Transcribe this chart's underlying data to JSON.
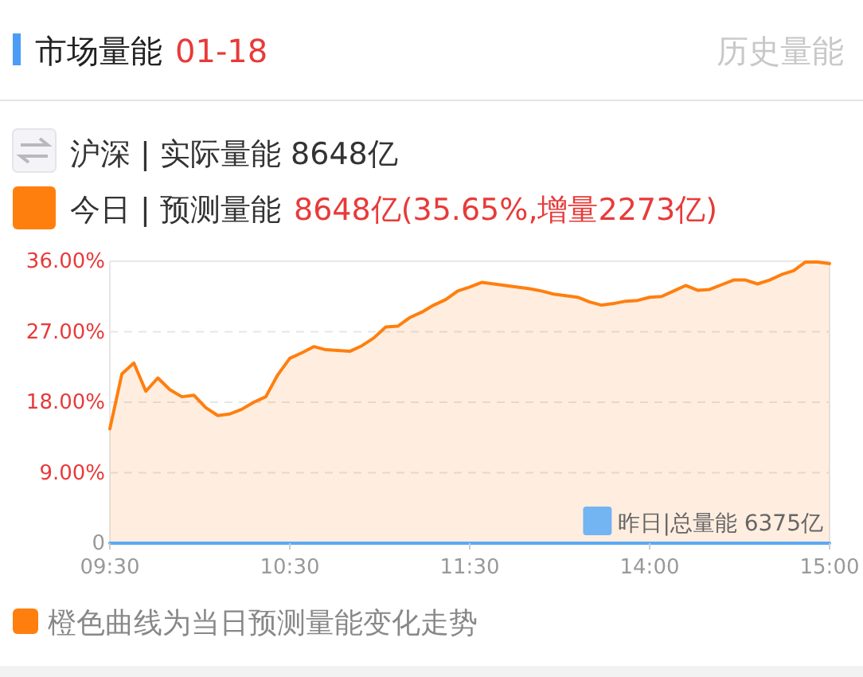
{
  "chart_data": {
    "type": "area",
    "title": "市场量能",
    "subtitle": "01-18",
    "annotations": [
      "历史量能",
      "沪深 | 实际量能 8648亿",
      "8648亿(35.65%,增量2273亿)",
      "橙色曲线为当日预测量能变化走势"
    ],
    "categories": [
      "09:30",
      null,
      null,
      null,
      null,
      null,
      null,
      null,
      null,
      null,
      null,
      null,
      null,
      null,
      null,
      "10:30",
      null,
      null,
      null,
      null,
      null,
      null,
      null,
      null,
      null,
      null,
      null,
      null,
      null,
      null,
      "11:30",
      null,
      null,
      null,
      null,
      null,
      null,
      null,
      null,
      null,
      null,
      null,
      null,
      null,
      null,
      "14:00",
      null,
      null,
      null,
      null,
      null,
      null,
      null,
      null,
      null,
      null,
      null,
      null,
      null,
      null,
      "15:00"
    ],
    "ylim": [
      0,
      36
    ],
    "yticks": [
      {
        "value": 0,
        "label": "0"
      },
      {
        "value": 9,
        "label": "9.00%"
      },
      {
        "value": 18,
        "label": "18.00%"
      },
      {
        "value": 27,
        "label": "27.00%"
      },
      {
        "value": 36,
        "label": "36.00%"
      }
    ],
    "grid": "y",
    "legend": "top left",
    "series": [
      {
        "name": "今日 | 预测量能",
        "color": "#ff7f0e",
        "values": [
          14.6,
          21.6,
          23.0,
          19.4,
          21.1,
          19.6,
          18.7,
          18.9,
          17.3,
          16.3,
          16.5,
          17.1,
          18.0,
          18.7,
          21.5,
          23.6,
          24.3,
          25.1,
          24.7,
          24.6,
          24.5,
          25.2,
          26.2,
          27.6,
          27.7,
          28.8,
          29.5,
          30.4,
          31.1,
          32.2,
          32.7,
          33.3,
          33.1,
          32.9,
          32.7,
          32.5,
          32.2,
          31.8,
          31.6,
          31.4,
          30.8,
          30.4,
          30.6,
          30.9,
          31.0,
          31.4,
          31.5,
          32.2,
          32.9,
          32.3,
          32.4,
          33.0,
          33.6,
          33.6,
          33.1,
          33.6,
          34.3,
          34.8,
          35.9,
          35.9,
          35.7
        ]
      },
      {
        "name": "昨日|总量能 6375亿",
        "type": "line",
        "color": "#5aa9f5",
        "values": [
          0,
          0,
          0,
          0,
          0,
          0,
          0,
          0,
          0,
          0,
          0,
          0,
          0,
          0,
          0,
          0,
          0,
          0,
          0,
          0,
          0,
          0,
          0,
          0,
          0,
          0,
          0,
          0,
          0,
          0,
          0,
          0,
          0,
          0,
          0,
          0,
          0,
          0,
          0,
          0,
          0,
          0,
          0,
          0,
          0,
          0,
          0,
          0,
          0,
          0,
          0,
          0,
          0,
          0,
          0,
          0,
          0,
          0,
          0,
          0,
          0
        ]
      }
    ]
  }
}
